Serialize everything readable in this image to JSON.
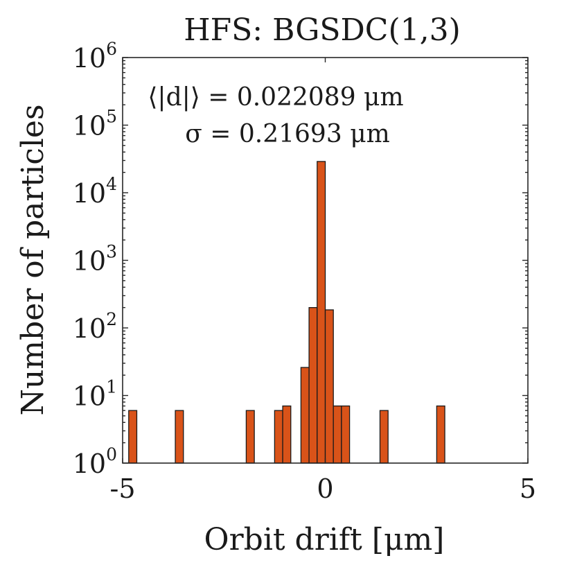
{
  "chart_data": {
    "type": "bar",
    "title": "HFS: BGSDC(1,3)",
    "xlabel": "Orbit drift [μm]",
    "ylabel": "Number of particles",
    "xlim": [
      -5,
      5
    ],
    "ylim_log10": [
      0,
      6
    ],
    "yscale": "log",
    "bin_width": 0.2,
    "xticks": [
      {
        "value": -5,
        "label": "-5"
      },
      {
        "value": 0,
        "label": "0"
      },
      {
        "value": 5,
        "label": "5"
      }
    ],
    "yticks": [
      {
        "exp": 0,
        "base": "10",
        "sup": "0"
      },
      {
        "exp": 1,
        "base": "10",
        "sup": "1"
      },
      {
        "exp": 2,
        "base": "10",
        "sup": "2"
      },
      {
        "exp": 3,
        "base": "10",
        "sup": "3"
      },
      {
        "exp": 4,
        "base": "10",
        "sup": "4"
      },
      {
        "exp": 5,
        "base": "10",
        "sup": "5"
      },
      {
        "exp": 6,
        "base": "10",
        "sup": "6"
      }
    ],
    "bars": [
      {
        "x": -4.75,
        "count": 6
      },
      {
        "x": -3.6,
        "count": 6
      },
      {
        "x": -1.85,
        "count": 6
      },
      {
        "x": -1.15,
        "count": 6
      },
      {
        "x": -0.95,
        "count": 7
      },
      {
        "x": -0.5,
        "count": 26
      },
      {
        "x": -0.3,
        "count": 200
      },
      {
        "x": -0.1,
        "count": 29000
      },
      {
        "x": 0.1,
        "count": 185
      },
      {
        "x": 0.3,
        "count": 7
      },
      {
        "x": 0.5,
        "count": 7
      },
      {
        "x": 1.45,
        "count": 6
      },
      {
        "x": 2.85,
        "count": 7
      }
    ],
    "annotations": [
      {
        "text": "⟨|d|⟩ = 0.022089 μm"
      },
      {
        "text": "σ = 0.21693 μm"
      }
    ],
    "bar_color": "#d95319"
  }
}
